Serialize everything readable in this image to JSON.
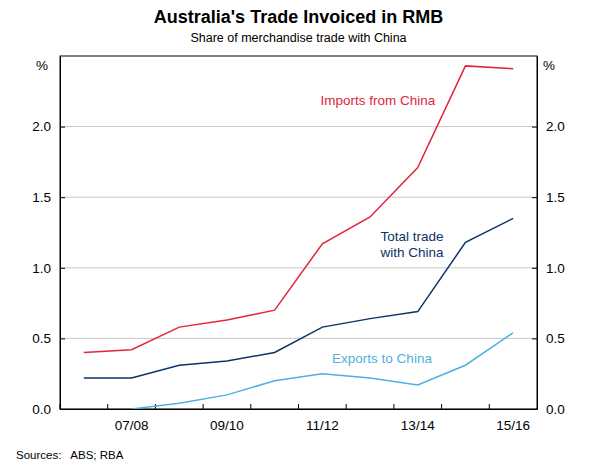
{
  "chart_data": {
    "type": "line",
    "title": "Australia's Trade Invoiced in RMB",
    "subtitle": "Share of merchandise trade with China",
    "ylabel": "%",
    "y2label": "%",
    "source": "Sources:   ABS; RBA",
    "categories": [
      null,
      "07/08",
      null,
      "09/10",
      null,
      "11/12",
      null,
      "13/14",
      null,
      "15/16"
    ],
    "series": [
      {
        "name": "Imports from China",
        "color": "#e3243b",
        "values": [
          0.4,
          0.42,
          0.58,
          0.63,
          0.7,
          1.17,
          1.36,
          1.71,
          2.43,
          2.41
        ]
      },
      {
        "name": "Total trade with China",
        "color": "#0b3467",
        "values": [
          0.22,
          0.22,
          0.31,
          0.34,
          0.4,
          0.58,
          0.64,
          0.69,
          1.18,
          1.35
        ]
      },
      {
        "name": "Exports to China",
        "color": "#4fb0de",
        "values": [
          null,
          0.0,
          0.04,
          0.1,
          0.2,
          0.25,
          0.22,
          0.17,
          0.31,
          0.54
        ]
      }
    ],
    "ylim": [
      0,
      2.5
    ],
    "yticks": [
      {
        "value": 0,
        "label": "0.0"
      },
      0.5,
      {
        "value": 1,
        "label": "1.0"
      },
      1.5,
      {
        "value": 2,
        "label": "2.0"
      }
    ],
    "y2lim": [
      0,
      2.5
    ],
    "y2ticks": [
      {
        "value": 0,
        "label": "0.0"
      },
      0.5,
      {
        "value": 1,
        "label": "1.0"
      },
      1.5,
      {
        "value": 2,
        "label": "2.0"
      }
    ],
    "grid": true
  }
}
